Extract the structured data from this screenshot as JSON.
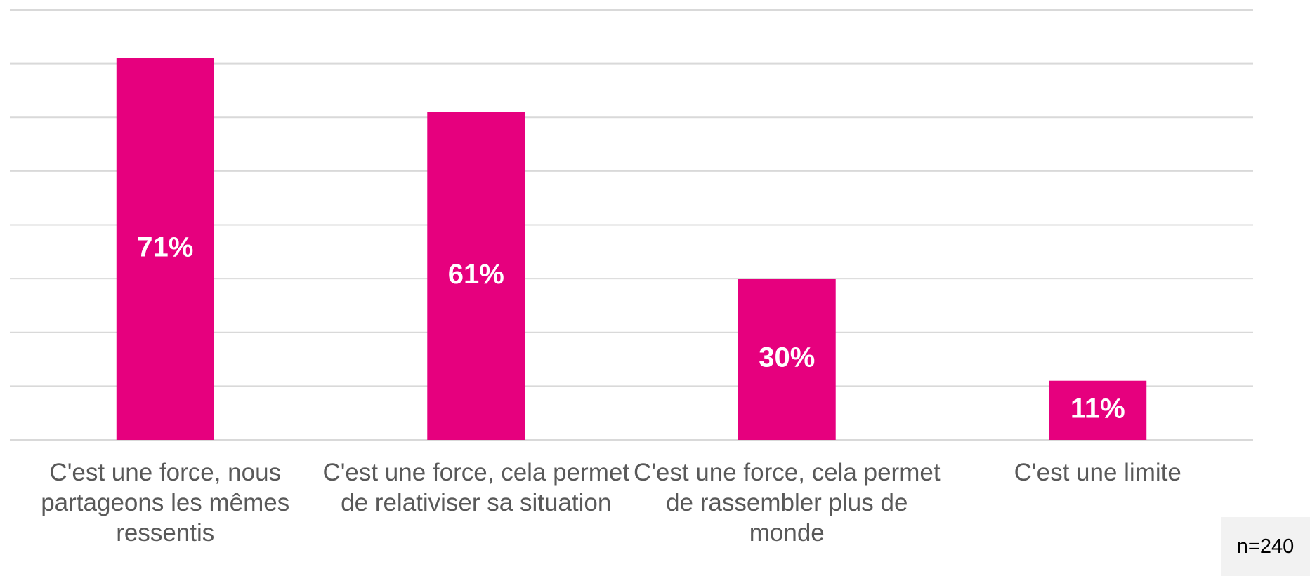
{
  "chart_data": {
    "type": "bar",
    "categories": [
      "C'est une force, nous partageons les mêmes ressentis",
      "C'est une force, cela permet de relativiser sa situation",
      "C'est une force, cela permet de rassembler plus de monde",
      "C'est une limite"
    ],
    "values": [
      71,
      61,
      30,
      11
    ],
    "value_labels": [
      "71%",
      "61%",
      "30%",
      "11%"
    ],
    "color": "#e6007e",
    "ylim": [
      0,
      80
    ],
    "yticks": [
      0,
      10,
      20,
      30,
      40,
      50,
      60,
      70,
      80
    ],
    "grid": true,
    "annotation": "n=240"
  }
}
